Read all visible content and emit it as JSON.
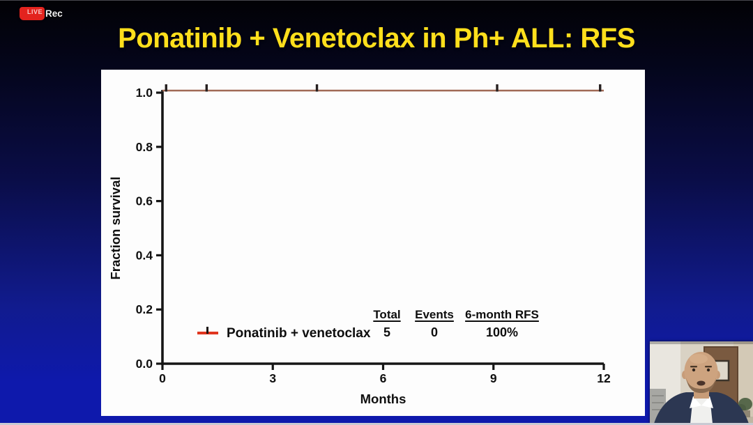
{
  "recording": {
    "label": "Rec",
    "badge_text": "LIVE",
    "badge_color": "#e3231e"
  },
  "slide": {
    "title": "Ponatinib + Venetoclax in Ph+ ALL: RFS",
    "title_color": "#ffdf1c"
  },
  "chart_data": {
    "type": "line",
    "subtype": "kaplan-meier",
    "title": "",
    "xlabel": "Months",
    "ylabel": "Fraction survival",
    "xlim": [
      0,
      12
    ],
    "ylim": [
      0.0,
      1.0
    ],
    "xticks": [
      0,
      3,
      6,
      9,
      12
    ],
    "ytick_labels": [
      "0.0",
      "0.2",
      "0.4",
      "0.6",
      "0.8",
      "1.0"
    ],
    "grid": false,
    "legend_position": "inside-bottom-left",
    "series": [
      {
        "name": "Ponatinib + venetoclax",
        "legend_color": "#e0361f",
        "plotted_line_color": "#a06a56",
        "censor_color": "#262020",
        "x": [
          0,
          12
        ],
        "y": [
          1.0,
          1.0
        ],
        "censor_marks_x_months": [
          0.1,
          1.2,
          4.2,
          9.1,
          11.9
        ]
      }
    ],
    "summary_table": {
      "headers": [
        "Total",
        "Events",
        "6-month RFS"
      ],
      "rows": [
        [
          "5",
          "0",
          "100%"
        ]
      ]
    }
  }
}
